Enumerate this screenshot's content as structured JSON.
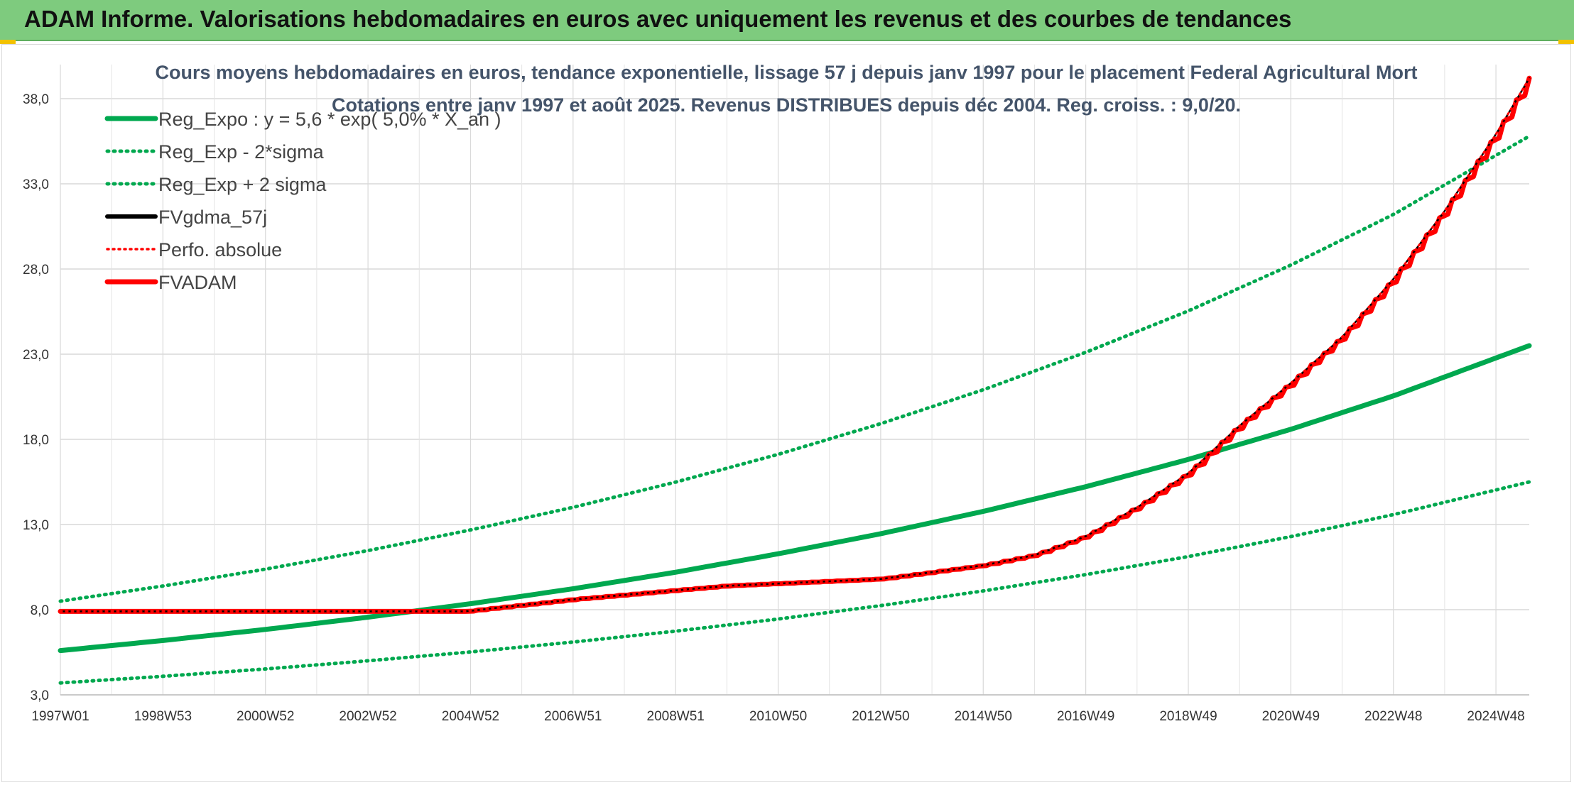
{
  "header": {
    "title": "ADAM Informe. Valorisations hebdomadaires en euros avec uniquement les revenus et des courbes de tendances"
  },
  "colors": {
    "banner": "#7ecb7e",
    "reg_green": "#00a84f",
    "adam_red": "#ff0000",
    "gdma_black": "#000000",
    "title_slate": "#44546a"
  },
  "chart_data": {
    "type": "line",
    "title": "Cours moyens hebdomadaires en euros, tendance exponentielle, lissage 57 j depuis janv 1997 pour le placement Federal Agricultural Mort",
    "subtitle": "Cotations entre janv 1997 et août 2025. Revenus DISTRIBUES depuis déc 2004. Reg. croiss. : 9,0/20.",
    "xlabel": "",
    "ylabel": "",
    "ylim": [
      3.0,
      40.0
    ],
    "yticks": [
      "3,0",
      "8,0",
      "13,0",
      "18,0",
      "23,0",
      "28,0",
      "33,0",
      "38,0"
    ],
    "xlim": [
      1997.0,
      2025.65
    ],
    "xticks": [
      "1997W01",
      "1998W53",
      "2000W52",
      "2002W52",
      "2004W52",
      "2006W51",
      "2008W51",
      "2010W50",
      "2012W50",
      "2014W50",
      "2016W49",
      "2018W49",
      "2020W49",
      "2022W48",
      "2024W48"
    ],
    "grid": true,
    "legend_position": "top-left",
    "series": [
      {
        "name": "Reg_Expo : y = 5,6 * exp( 5,0% *  X_an )",
        "color": "#00a84f",
        "style": "solid",
        "x": [
          1997,
          1999,
          2001,
          2003,
          2005,
          2007,
          2009,
          2011,
          2013,
          2015,
          2017,
          2019,
          2021,
          2023,
          2025.65
        ],
        "values": [
          5.6,
          6.19,
          6.84,
          7.56,
          8.35,
          9.23,
          10.2,
          11.28,
          12.46,
          13.77,
          15.22,
          16.82,
          18.59,
          20.55,
          23.5
        ]
      },
      {
        "name": "Reg_Exp - 2*sigma",
        "color": "#00a84f",
        "style": "dotted",
        "x": [
          1997,
          1999,
          2001,
          2003,
          2005,
          2007,
          2009,
          2011,
          2013,
          2015,
          2017,
          2019,
          2021,
          2023,
          2025.65
        ],
        "values": [
          3.7,
          4.09,
          4.52,
          5.0,
          5.52,
          6.1,
          6.74,
          7.45,
          8.24,
          9.1,
          10.06,
          11.12,
          12.29,
          13.58,
          15.5
        ]
      },
      {
        "name": "Reg_Exp + 2 sigma",
        "color": "#00a84f",
        "style": "dotted",
        "x": [
          1997,
          1999,
          2001,
          2003,
          2005,
          2007,
          2009,
          2011,
          2013,
          2015,
          2017,
          2019,
          2021,
          2023,
          2025.65
        ],
        "values": [
          8.5,
          9.39,
          10.38,
          11.47,
          12.68,
          14.01,
          15.49,
          17.12,
          18.92,
          20.91,
          23.11,
          25.54,
          28.23,
          31.2,
          35.8
        ]
      },
      {
        "name": "FVgdma_57j",
        "color": "#000000",
        "style": "solid",
        "x": [
          1997,
          2000,
          2004.9,
          2007,
          2010,
          2013,
          2015,
          2016,
          2017,
          2018,
          2019,
          2020,
          2021,
          2022,
          2023,
          2024,
          2025,
          2025.65
        ],
        "values": [
          7.9,
          7.9,
          7.9,
          8.6,
          9.4,
          9.8,
          10.6,
          11.2,
          12.3,
          14.0,
          16.0,
          18.8,
          21.3,
          24.0,
          27.4,
          31.4,
          35.9,
          39.2
        ]
      },
      {
        "name": "Perfo. absolue",
        "color": "#ff0000",
        "style": "dotted",
        "x": [
          1997,
          2000,
          2004.9,
          2007,
          2010,
          2013,
          2015,
          2016,
          2017,
          2018,
          2019,
          2020,
          2021,
          2022,
          2023,
          2024,
          2025,
          2025.65
        ],
        "values": [
          7.9,
          7.9,
          7.9,
          8.6,
          9.4,
          9.8,
          10.6,
          11.2,
          12.3,
          14.0,
          16.0,
          18.8,
          21.3,
          24.0,
          27.4,
          31.4,
          35.9,
          39.2
        ]
      },
      {
        "name": "FVADAM",
        "color": "#ff0000",
        "style": "stepped",
        "x": [
          1997,
          2000,
          2004.9,
          2007,
          2010,
          2013,
          2015,
          2016,
          2017,
          2018,
          2019,
          2020,
          2021,
          2022,
          2023,
          2024,
          2025,
          2025.65
        ],
        "values": [
          7.9,
          7.9,
          7.9,
          8.6,
          9.4,
          9.8,
          10.6,
          11.2,
          12.3,
          14.0,
          16.0,
          18.8,
          21.3,
          24.0,
          27.4,
          31.4,
          35.9,
          39.2
        ]
      }
    ]
  }
}
